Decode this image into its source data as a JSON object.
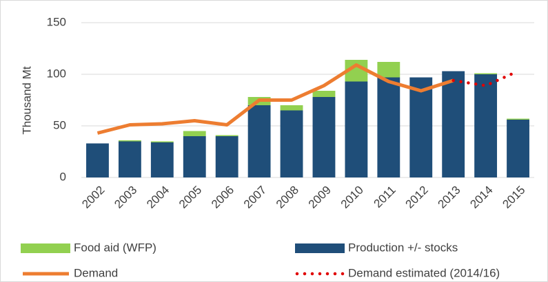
{
  "chart_data": {
    "type": "combo",
    "y_label": "Thousand Mt",
    "categories": [
      "2002",
      "2003",
      "2004",
      "2005",
      "2006",
      "2007",
      "2008",
      "2009",
      "2010",
      "2011",
      "2012",
      "2013",
      "2014",
      "2015"
    ],
    "ylim": [
      0,
      150
    ],
    "yticks": [
      0,
      50,
      100,
      150
    ],
    "grid": true,
    "series": [
      {
        "name": "Food aid (WFP)",
        "kind": "bar",
        "color": "#92d050",
        "values": [
          0,
          1,
          1,
          5,
          1,
          8,
          5,
          6,
          21,
          15,
          0,
          0,
          1,
          1
        ]
      },
      {
        "name": "Production +/- stocks",
        "kind": "bar",
        "color": "#1f4e79",
        "values": [
          33,
          35,
          34,
          40,
          40,
          70,
          65,
          78,
          93,
          97,
          97,
          103,
          100,
          56
        ]
      },
      {
        "name": "Demand",
        "kind": "line",
        "style": "solid",
        "color": "#ed7d31",
        "values": [
          43,
          51,
          52,
          55,
          51,
          75,
          75,
          89,
          109,
          93,
          84,
          94,
          null,
          null
        ]
      },
      {
        "name": "Demand estimated (2014/16)",
        "kind": "line",
        "style": "dotted",
        "color": "#e00000",
        "values": [
          null,
          null,
          null,
          null,
          null,
          null,
          null,
          null,
          null,
          null,
          null,
          94,
          89,
          103
        ]
      }
    ]
  }
}
